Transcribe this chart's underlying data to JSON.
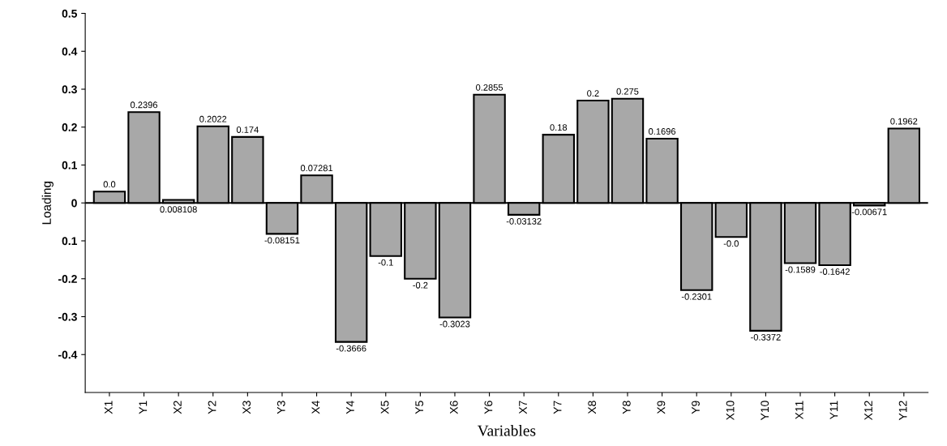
{
  "chart_data": {
    "type": "bar",
    "xlabel": "Variables",
    "ylabel": "Loading",
    "categories": [
      "X1",
      "Y1",
      "X2",
      "Y2",
      "X3",
      "Y3",
      "X4",
      "Y4",
      "X5",
      "Y5",
      "X6",
      "Y6",
      "X7",
      "Y7",
      "X8",
      "Y8",
      "X9",
      "Y9",
      "X10",
      "Y10",
      "X11",
      "Y11",
      "X12",
      "Y12"
    ],
    "values": [
      0.03,
      0.2396,
      0.008108,
      0.2022,
      0.174,
      -0.08151,
      0.07281,
      -0.3666,
      -0.14,
      -0.2,
      -0.3023,
      0.2855,
      -0.03132,
      0.18,
      0.27,
      0.275,
      0.1696,
      -0.2301,
      -0.09,
      -0.3372,
      -0.1589,
      -0.1642,
      -0.00671,
      0.1962
    ],
    "value_labels": [
      "0.0",
      "0.2396",
      "0.008108",
      "0.2022",
      "0.174",
      "-0.08151",
      "0.07281",
      "-0.3666",
      "-0.1",
      "-0.2",
      "-0.3023",
      "0.2855",
      "-0.03132",
      "0.18",
      null,
      "0.275",
      "0.1696",
      "-0.2301",
      null,
      "-0.3372",
      "-0.1589",
      "-0.1642",
      "-0.00671",
      "0.1962"
    ],
    "color": "#a8a8a8",
    "ylim": [
      -0.5,
      0.5
    ],
    "yticks": [
      -0.4,
      -0.3,
      -0.2,
      {
        "value": -0.1,
        "label": "0.1"
      },
      0,
      0.1,
      0.2,
      0.3,
      0.4,
      0.5
    ],
    "annotations": [
      {
        "text": "0.2",
        "x": "X8",
        "y": 0.27
      },
      {
        "text": "-0.0",
        "x": "X10",
        "y": -0.09
      }
    ],
    "ref_lines": [
      {
        "axis": "y",
        "value": 0,
        "color": "#000000"
      }
    ],
    "grid": false
  }
}
